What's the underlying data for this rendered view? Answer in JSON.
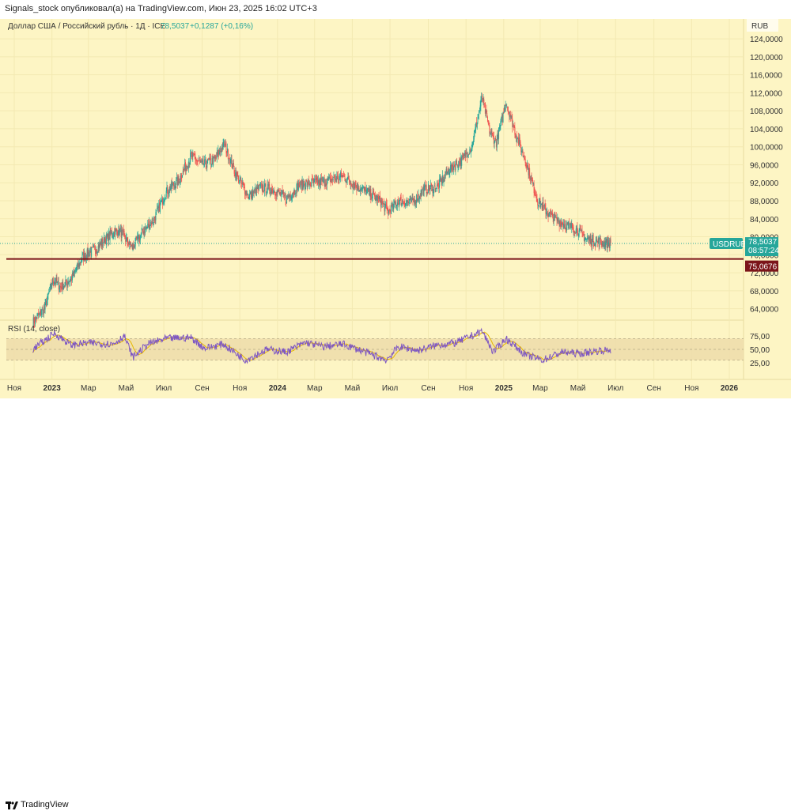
{
  "header": {
    "published_line": "Signals_stock опубликовал(а) на TradingView.com, Июн 23, 2025 16:02 UTC+3"
  },
  "legend": {
    "instrument": "Доллар США / Российский рубль · 1Д · ICE",
    "last_price": "78,5037",
    "change": "+0,1287 (+0,16%)"
  },
  "currency_label": "RUB",
  "price_ticks": [
    "124,0000",
    "120,0000",
    "116,0000",
    "112,0000",
    "108,0000",
    "104,0000",
    "100,0000",
    "96,0000",
    "92,0000",
    "88,0000",
    "84,0000",
    "80,0000",
    "76,0000",
    "72,0000",
    "68,0000",
    "64,0000"
  ],
  "price_tag": {
    "symbol": "USDRUB",
    "value": "78,5037",
    "countdown": "08:57:24",
    "color": "#26a69a"
  },
  "level_tag": {
    "value": "75,0676",
    "color": "#7b1419"
  },
  "rsi": {
    "label": "RSI (14, close)",
    "ticks": [
      "75,00",
      "50,00",
      "25,00"
    ],
    "line_color": "#7e57c2",
    "ma_color": "#e6b800"
  },
  "time_ticks": [
    "Ноя",
    "2023",
    "Мар",
    "Май",
    "Июл",
    "Сен",
    "Ноя",
    "2024",
    "Мар",
    "Май",
    "Июл",
    "Сен",
    "Ноя",
    "2025",
    "Мар",
    "Май",
    "Июл",
    "Сен",
    "Ноя",
    "2026"
  ],
  "footer": {
    "brand": "TradingView"
  },
  "chart_data": {
    "type": "candlestick",
    "symbol": "USDRUB",
    "interval": "1Д",
    "y_unit": "RUB",
    "ylim": [
      62,
      127
    ],
    "horizontal_level": 75.0676,
    "last_price": 78.5037,
    "x_range": [
      "2022-11",
      "2026-01"
    ],
    "price_path": [
      [
        "2022-12-01",
        61.0
      ],
      [
        "2022-12-20",
        64.0
      ],
      [
        "2023-01-03",
        70.5
      ],
      [
        "2023-01-15",
        68.8
      ],
      [
        "2023-02-01",
        70.6
      ],
      [
        "2023-02-20",
        75.5
      ],
      [
        "2023-03-15",
        77.5
      ],
      [
        "2023-04-05",
        80.5
      ],
      [
        "2023-04-20",
        81.5
      ],
      [
        "2023-05-10",
        77.5
      ],
      [
        "2023-05-25",
        80.5
      ],
      [
        "2023-06-15",
        84.0
      ],
      [
        "2023-07-05",
        90.0
      ],
      [
        "2023-07-25",
        92.5
      ],
      [
        "2023-08-14",
        98.0
      ],
      [
        "2023-09-01",
        96.0
      ],
      [
        "2023-09-20",
        97.0
      ],
      [
        "2023-10-07",
        100.5
      ],
      [
        "2023-10-25",
        94.0
      ],
      [
        "2023-11-15",
        89.0
      ],
      [
        "2023-12-05",
        91.0
      ],
      [
        "2023-12-25",
        90.5
      ],
      [
        "2024-01-15",
        88.5
      ],
      [
        "2024-02-05",
        91.5
      ],
      [
        "2024-03-01",
        92.0
      ],
      [
        "2024-03-25",
        92.5
      ],
      [
        "2024-04-15",
        93.5
      ],
      [
        "2024-05-05",
        91.5
      ],
      [
        "2024-05-25",
        90.0
      ],
      [
        "2024-06-15",
        88.0
      ],
      [
        "2024-06-28",
        85.5
      ],
      [
        "2024-07-15",
        88.0
      ],
      [
        "2024-08-05",
        87.5
      ],
      [
        "2024-08-25",
        90.5
      ],
      [
        "2024-09-15",
        91.0
      ],
      [
        "2024-10-05",
        95.0
      ],
      [
        "2024-10-25",
        97.0
      ],
      [
        "2024-11-10",
        100.0
      ],
      [
        "2024-11-27",
        111.0
      ],
      [
        "2024-12-10",
        103.0
      ],
      [
        "2024-12-20",
        101.0
      ],
      [
        "2025-01-05",
        110.0
      ],
      [
        "2025-01-20",
        103.0
      ],
      [
        "2025-02-05",
        97.0
      ],
      [
        "2025-02-25",
        88.0
      ],
      [
        "2025-03-15",
        85.0
      ],
      [
        "2025-04-05",
        83.0
      ],
      [
        "2025-04-25",
        82.0
      ],
      [
        "2025-05-15",
        79.5
      ],
      [
        "2025-06-05",
        78.8
      ],
      [
        "2025-06-23",
        78.5037
      ]
    ],
    "rsi_path": [
      [
        "2022-12-01",
        50
      ],
      [
        "2023-01-05",
        80
      ],
      [
        "2023-02-01",
        58
      ],
      [
        "2023-03-01",
        62
      ],
      [
        "2023-04-10",
        60
      ],
      [
        "2023-04-28",
        75
      ],
      [
        "2023-05-12",
        35
      ],
      [
        "2023-06-05",
        60
      ],
      [
        "2023-07-05",
        70
      ],
      [
        "2023-08-14",
        72
      ],
      [
        "2023-09-05",
        52
      ],
      [
        "2023-10-05",
        60
      ],
      [
        "2023-11-10",
        30
      ],
      [
        "2023-12-15",
        50
      ],
      [
        "2024-01-15",
        45
      ],
      [
        "2024-02-15",
        63
      ],
      [
        "2024-03-15",
        55
      ],
      [
        "2024-04-15",
        60
      ],
      [
        "2024-05-15",
        48
      ],
      [
        "2024-06-25",
        30
      ],
      [
        "2024-07-15",
        55
      ],
      [
        "2024-08-15",
        48
      ],
      [
        "2024-09-15",
        58
      ],
      [
        "2024-10-15",
        62
      ],
      [
        "2024-11-27",
        84
      ],
      [
        "2024-12-15",
        45
      ],
      [
        "2025-01-05",
        70
      ],
      [
        "2025-02-05",
        40
      ],
      [
        "2025-03-05",
        30
      ],
      [
        "2025-04-05",
        45
      ],
      [
        "2025-05-05",
        42
      ],
      [
        "2025-06-05",
        48
      ],
      [
        "2025-06-23",
        48
      ]
    ]
  }
}
